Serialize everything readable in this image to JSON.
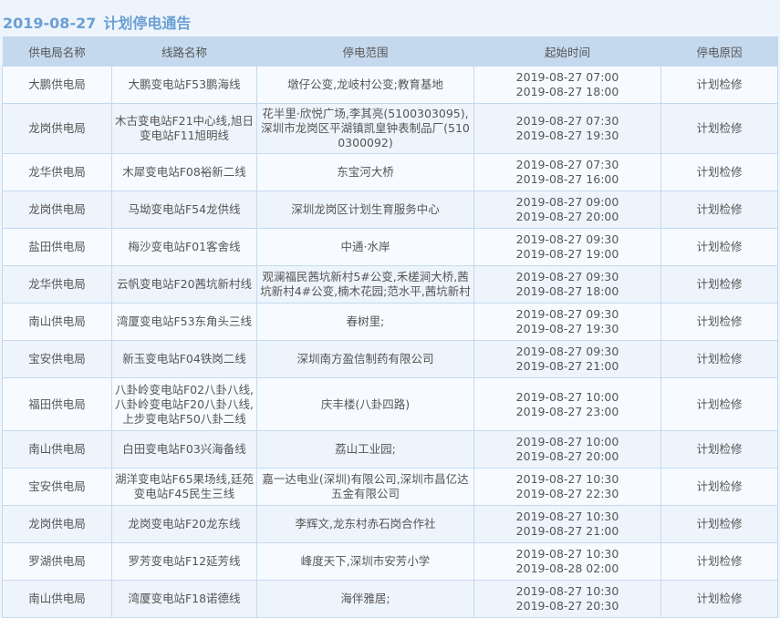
{
  "header": {
    "date": "2019-08-27",
    "title": "计划停电通告"
  },
  "table": {
    "columns": [
      "供电局名称",
      "线路名称",
      "停电范围",
      "起始时间",
      "停电原因"
    ],
    "rows": [
      {
        "bureau": "大鹏供电局",
        "line": "大鹏变电站F53鹏海线",
        "scope": "墩仔公变,龙岐村公变;教育基地",
        "start": "2019-08-27 07:00",
        "end": "2019-08-27 18:00",
        "reason": "计划检修"
      },
      {
        "bureau": "龙岗供电局",
        "line": "木古变电站F21中心线,旭日变电站F11旭明线",
        "scope": "花半里·欣悦广场,李其亮(5100303095),深圳市龙岗区平湖镇凯皇钟表制品厂(5100300092)",
        "start": "2019-08-27 07:30",
        "end": "2019-08-27 19:30",
        "reason": "计划检修"
      },
      {
        "bureau": "龙华供电局",
        "line": "木犀变电站F08裕新二线",
        "scope": "东宝河大桥",
        "start": "2019-08-27 07:30",
        "end": "2019-08-27 16:00",
        "reason": "计划检修"
      },
      {
        "bureau": "龙岗供电局",
        "line": "马坳变电站F54龙供线",
        "scope": "深圳龙岗区计划生育服务中心",
        "start": "2019-08-27 09:00",
        "end": "2019-08-27 20:00",
        "reason": "计划检修"
      },
      {
        "bureau": "盐田供电局",
        "line": "梅沙变电站F01客舍线",
        "scope": "中通·水岸",
        "start": "2019-08-27 09:30",
        "end": "2019-08-27 19:00",
        "reason": "计划检修"
      },
      {
        "bureau": "龙华供电局",
        "line": "云帆变电站F20茜坑新村线",
        "scope": "观澜福民茜坑新村5#公变,禾槎涧大桥,茜坑新村4#公变,楠木花园;范水平,茜坑新村",
        "start": "2019-08-27 09:30",
        "end": "2019-08-27 18:00",
        "reason": "计划检修"
      },
      {
        "bureau": "南山供电局",
        "line": "湾厦变电站F53东角头三线",
        "scope": "春树里;",
        "start": "2019-08-27 09:30",
        "end": "2019-08-27 19:30",
        "reason": "计划检修"
      },
      {
        "bureau": "宝安供电局",
        "line": "新玉变电站F04铁岗二线",
        "scope": "深圳南方盈信制药有限公司",
        "start": "2019-08-27 09:30",
        "end": "2019-08-27 21:00",
        "reason": "计划检修"
      },
      {
        "bureau": "福田供电局",
        "line": "八卦岭变电站F02八卦八线,八卦岭变电站F20八卦八线,上步变电站F50八卦二线",
        "scope": "庆丰楼(八卦四路)",
        "start": "2019-08-27 10:00",
        "end": "2019-08-27 23:00",
        "reason": "计划检修"
      },
      {
        "bureau": "南山供电局",
        "line": "白田变电站F03兴海备线",
        "scope": "荔山工业园;",
        "start": "2019-08-27 10:00",
        "end": "2019-08-27 20:00",
        "reason": "计划检修"
      },
      {
        "bureau": "宝安供电局",
        "line": "湖洋变电站F65果场线,廷苑变电站F45民生三线",
        "scope": "嘉一达电业(深圳)有限公司,深圳市昌亿达五金有限公司",
        "start": "2019-08-27 10:30",
        "end": "2019-08-27 22:30",
        "reason": "计划检修"
      },
      {
        "bureau": "龙岗供电局",
        "line": "龙岗变电站F20龙东线",
        "scope": "李辉文,龙东村赤石岗合作社",
        "start": "2019-08-27 10:30",
        "end": "2019-08-27 21:00",
        "reason": "计划检修"
      },
      {
        "bureau": "罗湖供电局",
        "line": "罗芳变电站F12延芳线",
        "scope": "峰度天下,深圳市安芳小学",
        "start": "2019-08-27 10:30",
        "end": "2019-08-28 02:00",
        "reason": "计划检修"
      },
      {
        "bureau": "南山供电局",
        "line": "湾厦变电站F18诺德线",
        "scope": "海伴雅居;",
        "start": "2019-08-27 10:30",
        "end": "2019-08-27 20:30",
        "reason": "计划检修"
      }
    ]
  }
}
